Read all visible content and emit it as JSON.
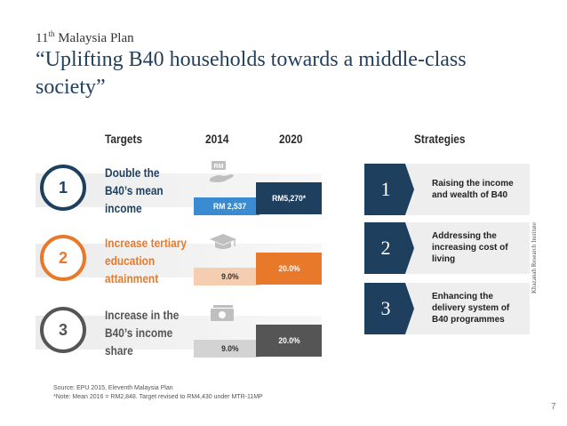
{
  "header": {
    "plan_prefix": "11",
    "plan_sup": "th",
    "plan_suffix": " Malaysia Plan",
    "title": "“Uplifting B40 households towards a middle-class society”"
  },
  "columns": {
    "targets": "Targets",
    "year_2014": "2014",
    "year_2020": "2020",
    "strategies": "Strategies"
  },
  "targets": [
    {
      "number": "1",
      "label_lines": [
        "Double the",
        "B40’s mean",
        "income"
      ],
      "value_2014": "RM 2,537",
      "value_2020": "RM5,270*",
      "icon": "money-hand-icon",
      "icon_text": "RM",
      "ring_color": "#1f3f5f",
      "label_color": "#1f3f5f",
      "bar_2014_color": "#3a8bd1",
      "bar_2020_color": "#1f3f5f",
      "text_2014_color": "#ffffff"
    },
    {
      "number": "2",
      "label_lines": [
        "Increase tertiary",
        "education",
        "attainment"
      ],
      "value_2014": "9.0%",
      "value_2020": "20.0%",
      "icon": "graduation-cap-icon",
      "ring_color": "#e8792b",
      "label_color": "#e8792b",
      "bar_2014_color": "#f5cdb0",
      "bar_2020_color": "#e8792b",
      "text_2014_color": "#333333"
    },
    {
      "number": "3",
      "label_lines": [
        "Increase in the",
        "B40’s income",
        "share"
      ],
      "value_2014": "9.0%",
      "value_2020": "20.0%",
      "icon": "banknote-icon",
      "ring_color": "#555555",
      "label_color": "#555555",
      "bar_2014_color": "#d3d3d3",
      "bar_2020_color": "#555555",
      "text_2014_color": "#333333"
    }
  ],
  "strategies": [
    {
      "number": "1",
      "lines": [
        "Raising the income",
        "and wealth of B40"
      ]
    },
    {
      "number": "2",
      "lines": [
        "Addressing the",
        "increasing cost of",
        "living"
      ]
    },
    {
      "number": "3",
      "lines": [
        "Enhancing the",
        "delivery system of",
        "B40 programmes"
      ]
    }
  ],
  "footer": {
    "source": "Source: EPU 2015, Eleventh Malaysia Plan",
    "note": "*Note: Mean 2016 = RM2,848. Target revised to RM4,430 under MTR-11MP",
    "vertical_text": "Khazanah Research Institute",
    "page_number": "7"
  },
  "colors": {
    "navy": "#1f3f5f",
    "orange": "#e8792b",
    "grey": "#555555",
    "light_blue": "#3a8bd1"
  }
}
